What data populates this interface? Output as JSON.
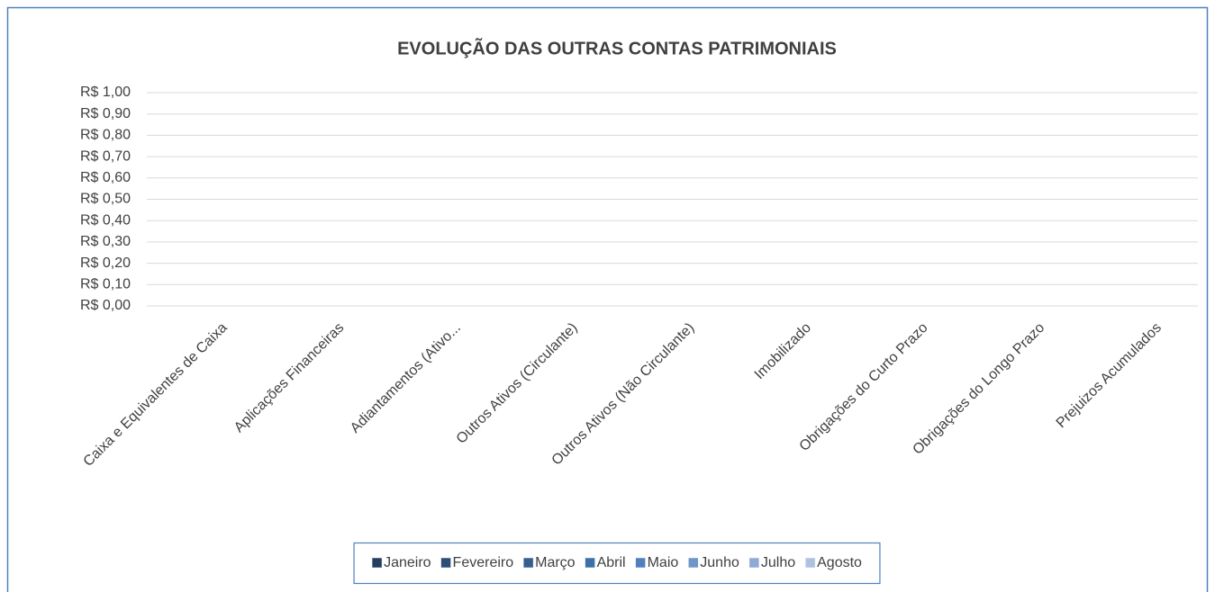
{
  "chart_data": {
    "type": "bar",
    "title": "EVOLUÇÃO DAS OUTRAS CONTAS PATRIMONIAIS",
    "categories": [
      "Caixa e Equivalentes de Caixa",
      "Aplicações Financeiras",
      "Adiantamentos (Ativo...",
      "Outros Ativos (Circulante)",
      "Outros Ativos (Não Circulante)",
      "Imobilizado",
      "Obrigações do Curto Prazo",
      "Obrigações do Longo Prazo",
      "Prejuizos Acumulados"
    ],
    "series": [
      {
        "name": "Janeiro",
        "color": "#243f60",
        "values": [
          0,
          0,
          0,
          0,
          0,
          0,
          0,
          0,
          0
        ]
      },
      {
        "name": "Fevereiro",
        "color": "#2c4d75",
        "values": [
          0,
          0,
          0,
          0,
          0,
          0,
          0,
          0,
          0
        ]
      },
      {
        "name": "Março",
        "color": "#365f91",
        "values": [
          0,
          0,
          0,
          0,
          0,
          0,
          0,
          0,
          0
        ]
      },
      {
        "name": "Abril",
        "color": "#3f6fa8",
        "values": [
          0,
          0,
          0,
          0,
          0,
          0,
          0,
          0,
          0
        ]
      },
      {
        "name": "Maio",
        "color": "#4f81bd",
        "values": [
          0,
          0,
          0,
          0,
          0,
          0,
          0,
          0,
          0
        ]
      },
      {
        "name": "Junho",
        "color": "#6f96c8",
        "values": [
          0,
          0,
          0,
          0,
          0,
          0,
          0,
          0,
          0
        ]
      },
      {
        "name": "Julho",
        "color": "#8eaad3",
        "values": [
          0,
          0,
          0,
          0,
          0,
          0,
          0,
          0,
          0
        ]
      },
      {
        "name": "Agosto",
        "color": "#aec2df",
        "values": [
          0,
          0,
          0,
          0,
          0,
          0,
          0,
          0,
          0
        ]
      }
    ],
    "ylim": [
      0,
      1
    ],
    "yticks": [
      {
        "value": 0,
        "label": "R$ 0,00"
      },
      {
        "value": 0.1,
        "label": "R$ 0,10"
      },
      {
        "value": 0.2,
        "label": "R$ 0,20"
      },
      {
        "value": 0.3,
        "label": "R$ 0,30"
      },
      {
        "value": 0.4,
        "label": "R$ 0,40"
      },
      {
        "value": 0.5,
        "label": "R$ 0,50"
      },
      {
        "value": 0.6,
        "label": "R$ 0,60"
      },
      {
        "value": 0.7,
        "label": "R$ 0,70"
      },
      {
        "value": 0.8,
        "label": "R$ 0,80"
      },
      {
        "value": 0.9,
        "label": "R$ 0,90"
      },
      {
        "value": 1,
        "label": "R$ 1,00"
      }
    ],
    "grid": true,
    "legend": "bottom"
  }
}
